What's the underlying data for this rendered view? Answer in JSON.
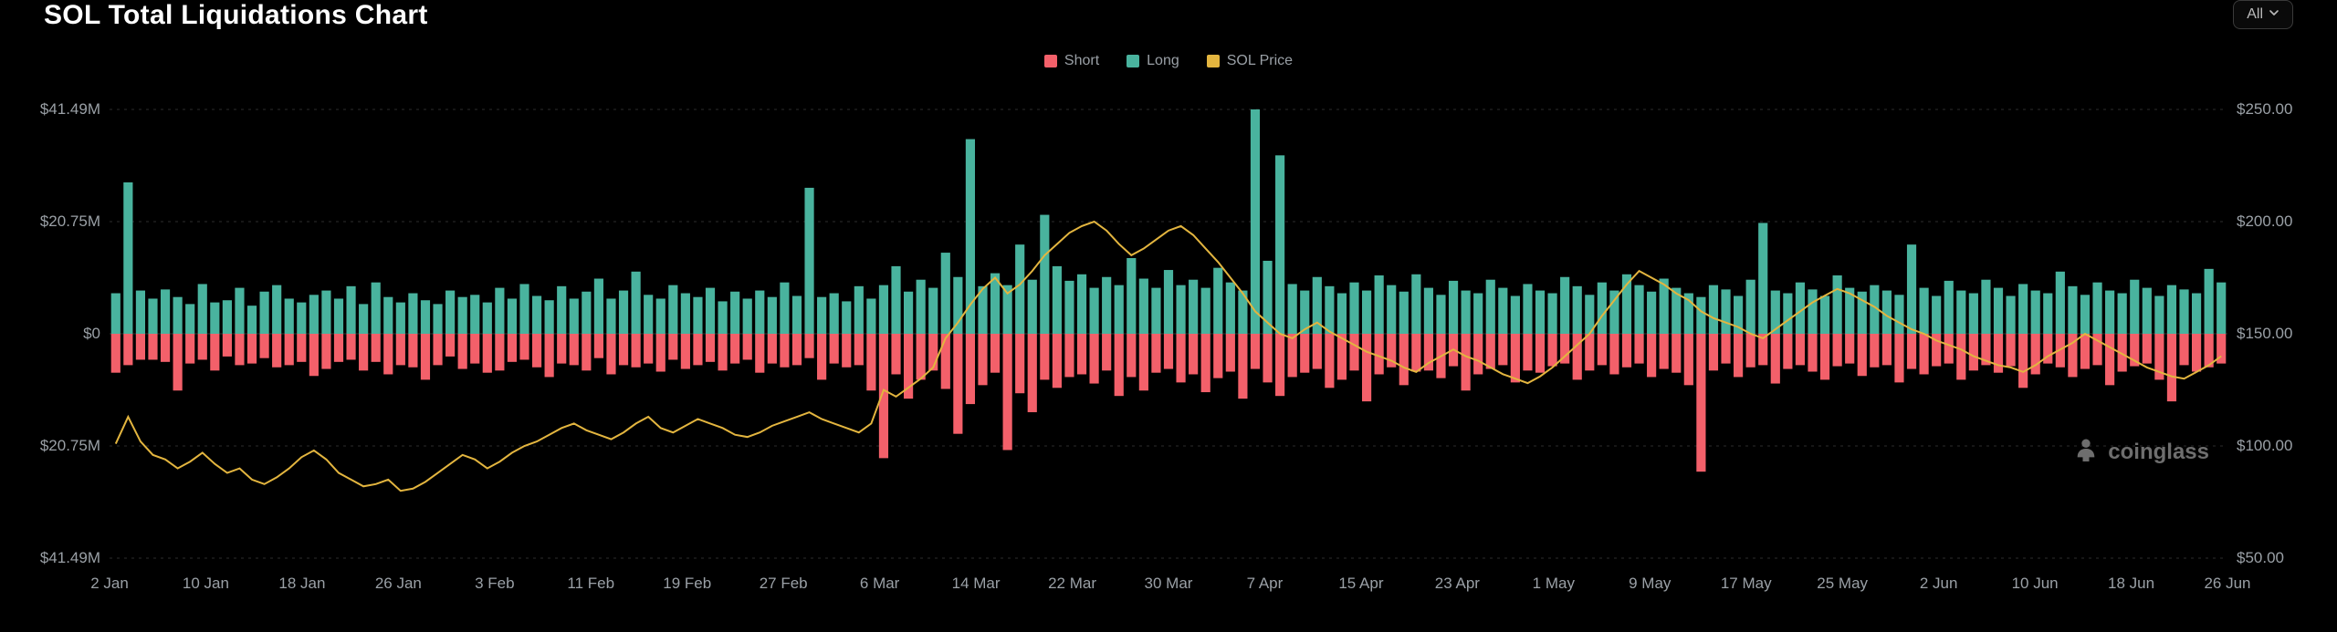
{
  "title": "SOL Total Liquidations Chart",
  "dropdown": {
    "label": "All"
  },
  "legend": {
    "short": "Short",
    "long": "Long",
    "price": "SOL Price"
  },
  "watermark": "coinglass",
  "colors": {
    "bg": "#000000",
    "grid": "#2b2b2b",
    "text_axis": "#9aa0a6",
    "short": "#f3606a",
    "long": "#49b39e",
    "price": "#e3b53f"
  },
  "chart": {
    "type": "diverging-bar-plus-line",
    "left_axis": {
      "max": 41.49,
      "ticks": [
        41.49,
        20.75,
        0,
        20.75,
        41.49
      ],
      "labels": [
        "$41.49M",
        "$20.75M",
        "$0",
        "$20.75M",
        "$41.49M"
      ]
    },
    "right_axis": {
      "min": 50,
      "max": 250,
      "ticks": [
        250,
        200,
        150,
        100,
        50
      ],
      "labels": [
        "$250.00",
        "$200.00",
        "$150.00",
        "$100.00",
        "$50.00"
      ]
    },
    "x_ticks": [
      "2 Jan",
      "10 Jan",
      "18 Jan",
      "26 Jan",
      "3 Feb",
      "11 Feb",
      "19 Feb",
      "27 Feb",
      "6 Mar",
      "14 Mar",
      "22 Mar",
      "30 Mar",
      "7 Apr",
      "15 Apr",
      "23 Apr",
      "1 May",
      "9 May",
      "17 May",
      "25 May",
      "2 Jun",
      "10 Jun",
      "18 Jun",
      "26 Jun"
    ],
    "bar_width_ratio": 0.75,
    "price_line_width": 2,
    "data": [
      {
        "long": 7.5,
        "short": 7.2,
        "price": 101
      },
      {
        "long": 28.0,
        "short": 5.8,
        "price": 113
      },
      {
        "long": 8.0,
        "short": 4.8,
        "price": 102
      },
      {
        "long": 6.5,
        "short": 4.8,
        "price": 96
      },
      {
        "long": 8.2,
        "short": 5.2,
        "price": 94
      },
      {
        "long": 6.8,
        "short": 10.5,
        "price": 90
      },
      {
        "long": 5.5,
        "short": 5.5,
        "price": 93
      },
      {
        "long": 9.2,
        "short": 4.8,
        "price": 97
      },
      {
        "long": 5.8,
        "short": 6.8,
        "price": 92
      },
      {
        "long": 6.2,
        "short": 4.2,
        "price": 88
      },
      {
        "long": 8.5,
        "short": 5.8,
        "price": 90
      },
      {
        "long": 5.2,
        "short": 5.5,
        "price": 85
      },
      {
        "long": 7.8,
        "short": 4.5,
        "price": 83
      },
      {
        "long": 9.0,
        "short": 6.2,
        "price": 86
      },
      {
        "long": 6.5,
        "short": 5.8,
        "price": 90
      },
      {
        "long": 5.8,
        "short": 5.2,
        "price": 95
      },
      {
        "long": 7.2,
        "short": 7.8,
        "price": 98
      },
      {
        "long": 8.0,
        "short": 6.5,
        "price": 94
      },
      {
        "long": 6.5,
        "short": 5.2,
        "price": 88
      },
      {
        "long": 8.8,
        "short": 4.8,
        "price": 85
      },
      {
        "long": 5.5,
        "short": 6.8,
        "price": 82
      },
      {
        "long": 9.5,
        "short": 5.2,
        "price": 83
      },
      {
        "long": 6.8,
        "short": 7.5,
        "price": 85
      },
      {
        "long": 5.8,
        "short": 5.8,
        "price": 80
      },
      {
        "long": 7.5,
        "short": 6.2,
        "price": 81
      },
      {
        "long": 6.2,
        "short": 8.5,
        "price": 84
      },
      {
        "long": 5.5,
        "short": 5.8,
        "price": 88
      },
      {
        "long": 8.0,
        "short": 4.2,
        "price": 92
      },
      {
        "long": 6.8,
        "short": 6.5,
        "price": 96
      },
      {
        "long": 7.2,
        "short": 5.5,
        "price": 94
      },
      {
        "long": 5.8,
        "short": 7.2,
        "price": 90
      },
      {
        "long": 8.5,
        "short": 6.8,
        "price": 93
      },
      {
        "long": 6.5,
        "short": 5.2,
        "price": 97
      },
      {
        "long": 9.2,
        "short": 4.8,
        "price": 100
      },
      {
        "long": 7.0,
        "short": 6.2,
        "price": 102
      },
      {
        "long": 6.2,
        "short": 8.0,
        "price": 105
      },
      {
        "long": 8.8,
        "short": 5.5,
        "price": 108
      },
      {
        "long": 6.5,
        "short": 5.8,
        "price": 110
      },
      {
        "long": 7.8,
        "short": 6.8,
        "price": 107
      },
      {
        "long": 10.2,
        "short": 4.5,
        "price": 105
      },
      {
        "long": 6.5,
        "short": 7.5,
        "price": 103
      },
      {
        "long": 8.0,
        "short": 5.8,
        "price": 106
      },
      {
        "long": 11.5,
        "short": 6.2,
        "price": 110
      },
      {
        "long": 7.2,
        "short": 5.5,
        "price": 113
      },
      {
        "long": 6.5,
        "short": 7.0,
        "price": 108
      },
      {
        "long": 9.0,
        "short": 4.8,
        "price": 106
      },
      {
        "long": 7.5,
        "short": 6.5,
        "price": 109
      },
      {
        "long": 6.8,
        "short": 5.8,
        "price": 112
      },
      {
        "long": 8.5,
        "short": 5.2,
        "price": 110
      },
      {
        "long": 6.0,
        "short": 6.8,
        "price": 108
      },
      {
        "long": 7.8,
        "short": 5.5,
        "price": 105
      },
      {
        "long": 6.5,
        "short": 4.8,
        "price": 104
      },
      {
        "long": 8.0,
        "short": 7.2,
        "price": 106
      },
      {
        "long": 6.8,
        "short": 5.5,
        "price": 109
      },
      {
        "long": 9.5,
        "short": 6.2,
        "price": 111
      },
      {
        "long": 7.0,
        "short": 5.8,
        "price": 113
      },
      {
        "long": 27.0,
        "short": 4.5,
        "price": 115
      },
      {
        "long": 6.8,
        "short": 8.5,
        "price": 112
      },
      {
        "long": 7.5,
        "short": 5.5,
        "price": 110
      },
      {
        "long": 6.0,
        "short": 6.2,
        "price": 108
      },
      {
        "long": 8.8,
        "short": 5.8,
        "price": 106
      },
      {
        "long": 6.5,
        "short": 10.5,
        "price": 110
      },
      {
        "long": 9.0,
        "short": 23.0,
        "price": 125
      },
      {
        "long": 12.5,
        "short": 7.5,
        "price": 122
      },
      {
        "long": 7.8,
        "short": 12.0,
        "price": 126
      },
      {
        "long": 10.0,
        "short": 8.5,
        "price": 130
      },
      {
        "long": 8.5,
        "short": 6.8,
        "price": 135
      },
      {
        "long": 15.0,
        "short": 10.2,
        "price": 148
      },
      {
        "long": 10.5,
        "short": 18.5,
        "price": 155
      },
      {
        "long": 36.0,
        "short": 13.0,
        "price": 163
      },
      {
        "long": 8.8,
        "short": 9.5,
        "price": 170
      },
      {
        "long": 11.2,
        "short": 7.2,
        "price": 175
      },
      {
        "long": 9.0,
        "short": 21.5,
        "price": 168
      },
      {
        "long": 16.5,
        "short": 11.0,
        "price": 172
      },
      {
        "long": 10.0,
        "short": 14.5,
        "price": 178
      },
      {
        "long": 22.0,
        "short": 8.5,
        "price": 185
      },
      {
        "long": 12.5,
        "short": 10.0,
        "price": 190
      },
      {
        "long": 9.8,
        "short": 8.0,
        "price": 195
      },
      {
        "long": 11.0,
        "short": 7.5,
        "price": 198
      },
      {
        "long": 8.5,
        "short": 9.2,
        "price": 200
      },
      {
        "long": 10.5,
        "short": 6.8,
        "price": 196
      },
      {
        "long": 9.0,
        "short": 11.5,
        "price": 190
      },
      {
        "long": 14.0,
        "short": 8.0,
        "price": 185
      },
      {
        "long": 10.2,
        "short": 10.5,
        "price": 188
      },
      {
        "long": 8.5,
        "short": 7.2,
        "price": 192
      },
      {
        "long": 11.8,
        "short": 6.5,
        "price": 196
      },
      {
        "long": 9.0,
        "short": 9.0,
        "price": 198
      },
      {
        "long": 10.0,
        "short": 7.5,
        "price": 194
      },
      {
        "long": 8.5,
        "short": 10.8,
        "price": 188
      },
      {
        "long": 12.2,
        "short": 8.2,
        "price": 182
      },
      {
        "long": 9.5,
        "short": 7.0,
        "price": 175
      },
      {
        "long": 8.0,
        "short": 12.0,
        "price": 168
      },
      {
        "long": 41.5,
        "short": 6.5,
        "price": 160
      },
      {
        "long": 13.5,
        "short": 9.0,
        "price": 155
      },
      {
        "long": 33.0,
        "short": 11.5,
        "price": 150
      },
      {
        "long": 9.2,
        "short": 8.0,
        "price": 148
      },
      {
        "long": 8.0,
        "short": 7.2,
        "price": 152
      },
      {
        "long": 10.5,
        "short": 6.5,
        "price": 155
      },
      {
        "long": 8.8,
        "short": 10.0,
        "price": 151
      },
      {
        "long": 7.5,
        "short": 8.5,
        "price": 148
      },
      {
        "long": 9.5,
        "short": 6.8,
        "price": 145
      },
      {
        "long": 8.0,
        "short": 12.5,
        "price": 142
      },
      {
        "long": 10.8,
        "short": 7.5,
        "price": 140
      },
      {
        "long": 9.0,
        "short": 6.2,
        "price": 138
      },
      {
        "long": 7.8,
        "short": 9.5,
        "price": 135
      },
      {
        "long": 11.0,
        "short": 7.0,
        "price": 133
      },
      {
        "long": 8.5,
        "short": 6.8,
        "price": 137
      },
      {
        "long": 7.2,
        "short": 8.2,
        "price": 140
      },
      {
        "long": 9.8,
        "short": 6.0,
        "price": 143
      },
      {
        "long": 8.0,
        "short": 10.5,
        "price": 140
      },
      {
        "long": 7.5,
        "short": 7.5,
        "price": 138
      },
      {
        "long": 10.0,
        "short": 6.5,
        "price": 135
      },
      {
        "long": 8.5,
        "short": 5.8,
        "price": 132
      },
      {
        "long": 7.0,
        "short": 9.0,
        "price": 130
      },
      {
        "long": 9.2,
        "short": 6.8,
        "price": 128
      },
      {
        "long": 8.0,
        "short": 7.2,
        "price": 131
      },
      {
        "long": 7.5,
        "short": 6.0,
        "price": 135
      },
      {
        "long": 10.5,
        "short": 5.5,
        "price": 140
      },
      {
        "long": 8.8,
        "short": 8.5,
        "price": 145
      },
      {
        "long": 7.2,
        "short": 6.8,
        "price": 150
      },
      {
        "long": 9.5,
        "short": 5.8,
        "price": 158
      },
      {
        "long": 8.0,
        "short": 7.5,
        "price": 165
      },
      {
        "long": 11.0,
        "short": 6.2,
        "price": 172
      },
      {
        "long": 9.0,
        "short": 5.5,
        "price": 178
      },
      {
        "long": 7.8,
        "short": 8.0,
        "price": 175
      },
      {
        "long": 10.2,
        "short": 6.5,
        "price": 172
      },
      {
        "long": 8.5,
        "short": 7.2,
        "price": 168
      },
      {
        "long": 7.5,
        "short": 9.5,
        "price": 165
      },
      {
        "long": 6.8,
        "short": 25.5,
        "price": 160
      },
      {
        "long": 9.0,
        "short": 6.8,
        "price": 157
      },
      {
        "long": 8.2,
        "short": 5.5,
        "price": 155
      },
      {
        "long": 7.0,
        "short": 8.0,
        "price": 153
      },
      {
        "long": 10.0,
        "short": 6.2,
        "price": 150
      },
      {
        "long": 20.5,
        "short": 5.8,
        "price": 148
      },
      {
        "long": 8.0,
        "short": 9.2,
        "price": 152
      },
      {
        "long": 7.5,
        "short": 6.5,
        "price": 156
      },
      {
        "long": 9.5,
        "short": 5.8,
        "price": 160
      },
      {
        "long": 8.2,
        "short": 7.0,
        "price": 164
      },
      {
        "long": 7.0,
        "short": 8.5,
        "price": 167
      },
      {
        "long": 10.8,
        "short": 6.0,
        "price": 170
      },
      {
        "long": 8.5,
        "short": 5.5,
        "price": 168
      },
      {
        "long": 7.8,
        "short": 7.8,
        "price": 165
      },
      {
        "long": 9.0,
        "short": 6.2,
        "price": 162
      },
      {
        "long": 8.0,
        "short": 5.8,
        "price": 158
      },
      {
        "long": 7.2,
        "short": 9.0,
        "price": 155
      },
      {
        "long": 16.5,
        "short": 6.5,
        "price": 152
      },
      {
        "long": 8.5,
        "short": 7.5,
        "price": 150
      },
      {
        "long": 7.0,
        "short": 6.0,
        "price": 147
      },
      {
        "long": 9.8,
        "short": 5.5,
        "price": 145
      },
      {
        "long": 8.0,
        "short": 8.5,
        "price": 143
      },
      {
        "long": 7.5,
        "short": 6.8,
        "price": 140
      },
      {
        "long": 10.0,
        "short": 5.8,
        "price": 138
      },
      {
        "long": 8.5,
        "short": 7.2,
        "price": 136
      },
      {
        "long": 7.0,
        "short": 6.0,
        "price": 135
      },
      {
        "long": 9.2,
        "short": 10.0,
        "price": 133
      },
      {
        "long": 8.0,
        "short": 7.5,
        "price": 136
      },
      {
        "long": 7.5,
        "short": 5.5,
        "price": 140
      },
      {
        "long": 11.5,
        "short": 6.2,
        "price": 143
      },
      {
        "long": 8.8,
        "short": 8.0,
        "price": 146
      },
      {
        "long": 7.2,
        "short": 6.5,
        "price": 150
      },
      {
        "long": 9.5,
        "short": 5.8,
        "price": 147
      },
      {
        "long": 8.0,
        "short": 9.5,
        "price": 144
      },
      {
        "long": 7.5,
        "short": 7.0,
        "price": 141
      },
      {
        "long": 10.0,
        "short": 6.0,
        "price": 138
      },
      {
        "long": 8.5,
        "short": 5.5,
        "price": 135
      },
      {
        "long": 7.0,
        "short": 8.5,
        "price": 133
      },
      {
        "long": 9.0,
        "short": 12.5,
        "price": 131
      },
      {
        "long": 8.2,
        "short": 5.8,
        "price": 130
      },
      {
        "long": 7.5,
        "short": 7.0,
        "price": 133
      },
      {
        "long": 12.0,
        "short": 6.2,
        "price": 136
      },
      {
        "long": 9.5,
        "short": 5.5,
        "price": 140
      }
    ]
  }
}
